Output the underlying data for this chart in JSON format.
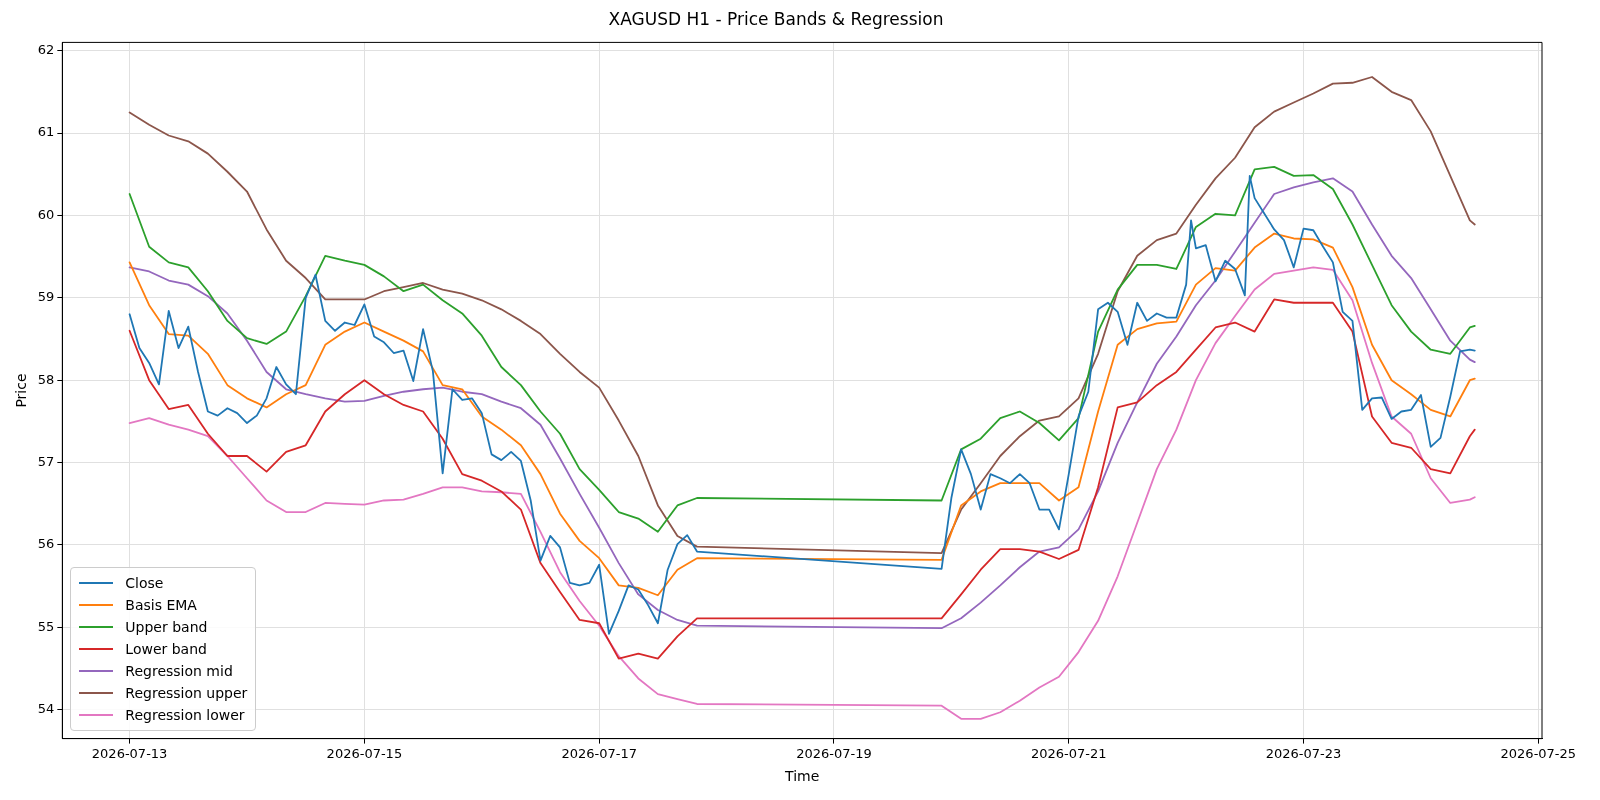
{
  "chart_data": {
    "type": "line",
    "title": "XAGUSD H1 - Price Bands & Regression",
    "xlabel": "Time",
    "ylabel": "Price",
    "x": [
      "2026-07-13T00:00",
      "2026-07-13T04:00",
      "2026-07-13T08:00",
      "2026-07-13T12:00",
      "2026-07-13T16:00",
      "2026-07-13T20:00",
      "2026-07-14T00:00",
      "2026-07-14T04:00",
      "2026-07-14T08:00",
      "2026-07-14T12:00",
      "2026-07-14T16:00",
      "2026-07-14T20:00",
      "2026-07-15T00:00",
      "2026-07-15T04:00",
      "2026-07-15T08:00",
      "2026-07-15T12:00",
      "2026-07-15T16:00",
      "2026-07-15T20:00",
      "2026-07-16T00:00",
      "2026-07-16T04:00",
      "2026-07-16T08:00",
      "2026-07-16T12:00",
      "2026-07-16T16:00",
      "2026-07-16T20:00",
      "2026-07-17T00:00",
      "2026-07-17T04:00",
      "2026-07-17T08:00",
      "2026-07-17T12:00",
      "2026-07-17T16:00",
      "2026-07-17T20:00",
      "2026-07-19T22:00",
      "2026-07-20T02:00",
      "2026-07-20T06:00",
      "2026-07-20T10:00",
      "2026-07-20T14:00",
      "2026-07-20T18:00",
      "2026-07-20T22:00",
      "2026-07-21T02:00",
      "2026-07-21T06:00",
      "2026-07-21T10:00",
      "2026-07-21T14:00",
      "2026-07-21T18:00",
      "2026-07-21T22:00",
      "2026-07-22T02:00",
      "2026-07-22T06:00",
      "2026-07-22T10:00",
      "2026-07-22T14:00",
      "2026-07-22T18:00",
      "2026-07-22T22:00",
      "2026-07-23T02:00",
      "2026-07-23T06:00",
      "2026-07-23T10:00",
      "2026-07-23T14:00",
      "2026-07-23T18:00",
      "2026-07-23T22:00",
      "2026-07-24T02:00",
      "2026-07-24T06:00",
      "2026-07-24T10:00",
      "2026-07-24T11:00"
    ],
    "series": [
      {
        "name": "Close",
        "color": "#1f77b4",
        "x": [
          "2026-07-13T00:00",
          "2026-07-13T02:00",
          "2026-07-13T04:00",
          "2026-07-13T06:00",
          "2026-07-13T08:00",
          "2026-07-13T10:00",
          "2026-07-13T12:00",
          "2026-07-13T14:00",
          "2026-07-13T16:00",
          "2026-07-13T18:00",
          "2026-07-13T20:00",
          "2026-07-13T22:00",
          "2026-07-14T00:00",
          "2026-07-14T02:00",
          "2026-07-14T04:00",
          "2026-07-14T06:00",
          "2026-07-14T08:00",
          "2026-07-14T10:00",
          "2026-07-14T12:00",
          "2026-07-14T14:00",
          "2026-07-14T16:00",
          "2026-07-14T18:00",
          "2026-07-14T20:00",
          "2026-07-14T22:00",
          "2026-07-15T00:00",
          "2026-07-15T02:00",
          "2026-07-15T04:00",
          "2026-07-15T06:00",
          "2026-07-15T08:00",
          "2026-07-15T10:00",
          "2026-07-15T12:00",
          "2026-07-15T14:00",
          "2026-07-15T16:00",
          "2026-07-15T18:00",
          "2026-07-15T20:00",
          "2026-07-15T22:00",
          "2026-07-16T00:00",
          "2026-07-16T02:00",
          "2026-07-16T04:00",
          "2026-07-16T06:00",
          "2026-07-16T08:00",
          "2026-07-16T10:00",
          "2026-07-16T12:00",
          "2026-07-16T14:00",
          "2026-07-16T16:00",
          "2026-07-16T18:00",
          "2026-07-16T20:00",
          "2026-07-16T22:00",
          "2026-07-17T00:00",
          "2026-07-17T02:00",
          "2026-07-17T04:00",
          "2026-07-17T06:00",
          "2026-07-17T08:00",
          "2026-07-17T10:00",
          "2026-07-17T12:00",
          "2026-07-17T14:00",
          "2026-07-17T16:00",
          "2026-07-17T18:00",
          "2026-07-17T20:00",
          "2026-07-19T22:00",
          "2026-07-20T00:00",
          "2026-07-20T02:00",
          "2026-07-20T04:00",
          "2026-07-20T06:00",
          "2026-07-20T08:00",
          "2026-07-20T10:00",
          "2026-07-20T12:00",
          "2026-07-20T14:00",
          "2026-07-20T16:00",
          "2026-07-20T18:00",
          "2026-07-20T20:00",
          "2026-07-20T22:00",
          "2026-07-21T00:00",
          "2026-07-21T02:00",
          "2026-07-21T04:00",
          "2026-07-21T06:00",
          "2026-07-21T08:00",
          "2026-07-21T10:00",
          "2026-07-21T12:00",
          "2026-07-21T14:00",
          "2026-07-21T16:00",
          "2026-07-21T18:00",
          "2026-07-21T20:00",
          "2026-07-21T22:00",
          "2026-07-22T00:00",
          "2026-07-22T01:00",
          "2026-07-22T02:00",
          "2026-07-22T04:00",
          "2026-07-22T06:00",
          "2026-07-22T08:00",
          "2026-07-22T10:00",
          "2026-07-22T12:00",
          "2026-07-22T13:00",
          "2026-07-22T14:00",
          "2026-07-22T16:00",
          "2026-07-22T18:00",
          "2026-07-22T20:00",
          "2026-07-22T22:00",
          "2026-07-23T00:00",
          "2026-07-23T02:00",
          "2026-07-23T04:00",
          "2026-07-23T06:00",
          "2026-07-23T08:00",
          "2026-07-23T10:00",
          "2026-07-23T12:00",
          "2026-07-23T14:00",
          "2026-07-23T16:00",
          "2026-07-23T18:00",
          "2026-07-23T20:00",
          "2026-07-23T22:00",
          "2026-07-24T00:00",
          "2026-07-24T02:00",
          "2026-07-24T04:00",
          "2026-07-24T06:00",
          "2026-07-24T08:00",
          "2026-07-24T10:00",
          "2026-07-24T11:00"
        ],
        "values": [
          58.8,
          58.39,
          58.21,
          57.95,
          58.84,
          58.39,
          58.65,
          58.1,
          57.62,
          57.57,
          57.66,
          57.6,
          57.48,
          57.57,
          57.78,
          58.16,
          57.95,
          57.83,
          59.0,
          59.28,
          58.72,
          58.6,
          58.7,
          58.67,
          58.92,
          58.53,
          58.46,
          58.33,
          58.36,
          57.99,
          58.62,
          58.11,
          56.87,
          57.89,
          57.76,
          57.78,
          57.6,
          57.1,
          57.03,
          57.13,
          57.02,
          56.54,
          55.81,
          56.11,
          55.97,
          55.54,
          55.51,
          55.54,
          55.76,
          54.92,
          55.2,
          55.51,
          55.46,
          55.27,
          55.05,
          55.7,
          56.01,
          56.12,
          55.92,
          55.71,
          56.57,
          57.16,
          56.86,
          56.43,
          56.86,
          56.81,
          56.75,
          56.86,
          56.75,
          56.43,
          56.43,
          56.19,
          56.86,
          57.56,
          57.86,
          58.86,
          58.94,
          58.83,
          58.43,
          58.94,
          58.72,
          58.81,
          58.76,
          58.76,
          59.16,
          59.94,
          59.6,
          59.64,
          59.2,
          59.45,
          59.35,
          59.03,
          60.48,
          60.21,
          60.02,
          59.83,
          59.7,
          59.37,
          59.84,
          59.82,
          59.62,
          59.43,
          58.83,
          58.72,
          57.64,
          57.78,
          57.79,
          57.53,
          57.62,
          57.64,
          57.82,
          57.19,
          57.3,
          57.8,
          58.35,
          58.37,
          58.36
        ]
      },
      {
        "name": "Basis EMA",
        "color": "#ff7f0e",
        "values": [
          59.43,
          58.91,
          58.56,
          58.54,
          58.32,
          57.94,
          57.78,
          57.67,
          57.83,
          57.94,
          58.43,
          58.59,
          58.7,
          58.59,
          58.48,
          58.35,
          57.94,
          57.89,
          57.56,
          57.4,
          57.21,
          56.86,
          56.38,
          56.05,
          55.84,
          55.51,
          55.48,
          55.39,
          55.7,
          55.84,
          55.82,
          56.48,
          56.65,
          56.75,
          56.75,
          56.75,
          56.54,
          56.7,
          57.62,
          58.43,
          58.62,
          58.69,
          58.71,
          59.16,
          59.36,
          59.33,
          59.61,
          59.78,
          59.72,
          59.71,
          59.61,
          59.13,
          58.43,
          58.0,
          57.83,
          57.64,
          57.56,
          58.0,
          58.02
        ]
      },
      {
        "name": "Upper band",
        "color": "#2ca02c",
        "values": [
          60.26,
          59.62,
          59.43,
          59.37,
          59.08,
          58.72,
          58.51,
          58.44,
          58.59,
          59.02,
          59.51,
          59.45,
          59.4,
          59.26,
          59.08,
          59.16,
          58.97,
          58.81,
          58.54,
          58.16,
          57.94,
          57.62,
          57.35,
          56.92,
          56.67,
          56.4,
          56.32,
          56.16,
          56.48,
          56.57,
          56.54,
          57.16,
          57.29,
          57.54,
          57.62,
          57.48,
          57.27,
          57.54,
          58.59,
          59.1,
          59.4,
          59.4,
          59.35,
          59.86,
          60.02,
          60.0,
          60.56,
          60.59,
          60.48,
          60.49,
          60.32,
          59.89,
          59.4,
          58.91,
          58.59,
          58.37,
          58.32,
          58.64,
          58.66
        ]
      },
      {
        "name": "Lower band",
        "color": "#d62728",
        "values": [
          58.6,
          58.0,
          57.65,
          57.7,
          57.35,
          57.08,
          57.08,
          56.89,
          57.13,
          57.21,
          57.62,
          57.83,
          58.0,
          57.83,
          57.7,
          57.62,
          57.29,
          56.86,
          56.78,
          56.65,
          56.43,
          55.78,
          55.43,
          55.09,
          55.05,
          54.62,
          54.68,
          54.62,
          54.89,
          55.11,
          55.11,
          55.4,
          55.7,
          55.95,
          55.95,
          55.92,
          55.83,
          55.94,
          56.7,
          57.67,
          57.73,
          57.94,
          58.1,
          58.37,
          58.64,
          58.7,
          58.59,
          58.98,
          58.94,
          58.94,
          58.94,
          58.59,
          57.56,
          57.24,
          57.18,
          56.92,
          56.87,
          57.32,
          57.4
        ]
      },
      {
        "name": "Regression mid",
        "color": "#9467bd",
        "values": [
          59.37,
          59.32,
          59.21,
          59.16,
          59.02,
          58.81,
          58.48,
          58.1,
          57.89,
          57.83,
          57.78,
          57.74,
          57.75,
          57.81,
          57.86,
          57.89,
          57.91,
          57.86,
          57.83,
          57.74,
          57.66,
          57.46,
          57.05,
          56.62,
          56.21,
          55.78,
          55.4,
          55.21,
          55.09,
          55.02,
          54.99,
          55.11,
          55.3,
          55.51,
          55.73,
          55.92,
          55.97,
          56.19,
          56.65,
          57.24,
          57.73,
          58.2,
          58.53,
          58.91,
          59.21,
          59.56,
          59.91,
          60.26,
          60.34,
          60.4,
          60.45,
          60.29,
          59.89,
          59.51,
          59.24,
          58.86,
          58.48,
          58.25,
          58.22
        ]
      },
      {
        "name": "Regression upper",
        "color": "#8c564b",
        "values": [
          61.25,
          61.1,
          60.97,
          60.9,
          60.75,
          60.53,
          60.29,
          59.83,
          59.45,
          59.24,
          58.98,
          58.98,
          58.98,
          59.08,
          59.13,
          59.18,
          59.1,
          59.05,
          58.97,
          58.86,
          58.72,
          58.56,
          58.32,
          58.1,
          57.91,
          57.51,
          57.08,
          56.48,
          56.11,
          55.98,
          55.9,
          56.43,
          56.75,
          57.08,
          57.32,
          57.51,
          57.56,
          57.78,
          58.32,
          59.08,
          59.51,
          59.7,
          59.78,
          60.13,
          60.45,
          60.7,
          61.07,
          61.26,
          61.37,
          61.48,
          61.6,
          61.61,
          61.68,
          61.5,
          61.4,
          61.02,
          60.48,
          59.94,
          59.89
        ]
      },
      {
        "name": "Regression lower",
        "color": "#e377c2",
        "values": [
          57.48,
          57.54,
          57.46,
          57.4,
          57.32,
          57.08,
          56.81,
          56.54,
          56.4,
          56.4,
          56.51,
          56.5,
          56.49,
          56.54,
          56.55,
          56.62,
          56.7,
          56.7,
          56.65,
          56.64,
          56.62,
          56.16,
          55.67,
          55.32,
          55.02,
          54.65,
          54.38,
          54.19,
          54.13,
          54.07,
          54.05,
          53.89,
          53.89,
          53.97,
          54.11,
          54.27,
          54.4,
          54.7,
          55.08,
          55.62,
          56.27,
          56.92,
          57.4,
          58.0,
          58.45,
          58.78,
          59.1,
          59.29,
          59.33,
          59.37,
          59.34,
          58.97,
          58.21,
          57.56,
          57.35,
          56.81,
          56.51,
          56.55,
          56.58
        ]
      }
    ],
    "xlim": [
      "2026-07-12T10:15",
      "2026-07-25T00:45"
    ],
    "xticks": [
      "2026-07-13",
      "2026-07-15",
      "2026-07-17",
      "2026-07-19",
      "2026-07-21",
      "2026-07-23",
      "2026-07-25"
    ],
    "ylim": [
      53.65,
      62.1
    ],
    "yticks": [
      54,
      55,
      56,
      57,
      58,
      59,
      60,
      61,
      62
    ],
    "grid": true,
    "legend": "bottom left",
    "marker": "none",
    "line_style": "solid"
  }
}
